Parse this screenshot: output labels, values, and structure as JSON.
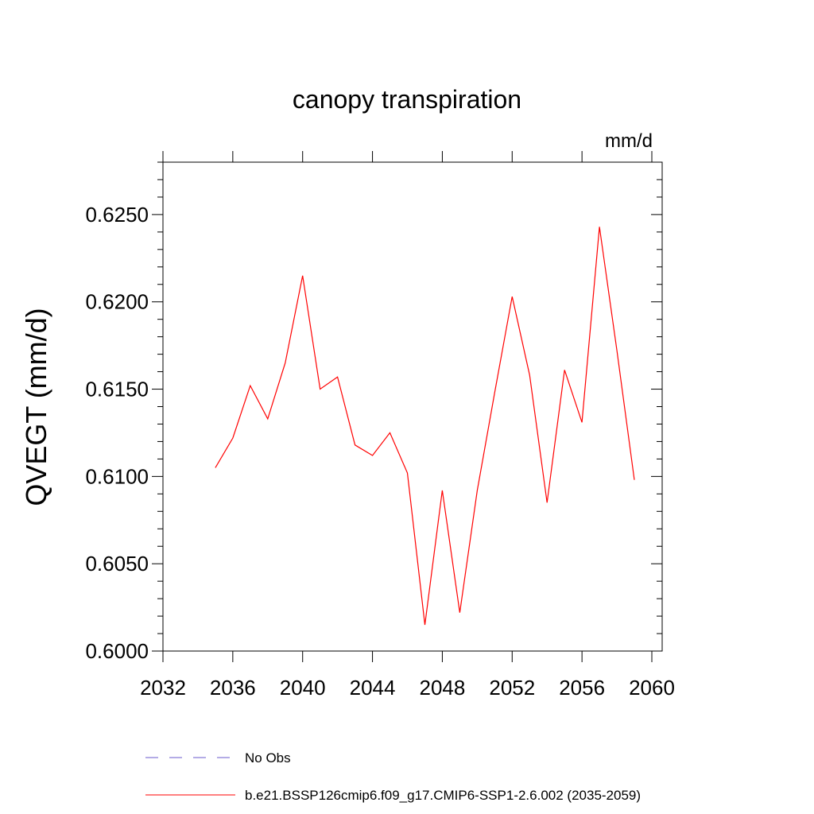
{
  "chart_data": {
    "type": "line",
    "title": "canopy transpiration",
    "units_label": "mm/d",
    "ylabel": "QVEGT  (mm/d)",
    "xlabel": "",
    "xlim": [
      2032,
      2060
    ],
    "ylim": [
      0.6,
      0.628
    ],
    "x_ticks": [
      2032,
      2036,
      2040,
      2044,
      2048,
      2052,
      2056,
      2060
    ],
    "x_tick_labels": [
      "2032",
      "2036",
      "2040",
      "2044",
      "2048",
      "2052",
      "2056",
      "2060"
    ],
    "y_ticks": [
      0.6,
      0.605,
      0.61,
      0.615,
      0.62,
      0.625
    ],
    "y_tick_labels": [
      "0.6000",
      "0.6050",
      "0.6100",
      "0.6150",
      "0.6200",
      "0.6250"
    ],
    "grid": false,
    "legend_position": "bottom",
    "series": [
      {
        "name": "b.e21.BSSP126cmip6.f09_g17.CMIP6-SSP1-2.6.002 (2035-2059)",
        "color": "#ff0000",
        "style": "solid",
        "x": [
          2035,
          2036,
          2037,
          2038,
          2039,
          2040,
          2041,
          2042,
          2043,
          2044,
          2045,
          2046,
          2047,
          2048,
          2049,
          2050,
          2051,
          2052,
          2053,
          2054,
          2055,
          2056,
          2057,
          2058,
          2059
        ],
        "y": [
          0.6105,
          0.6122,
          0.6152,
          0.6133,
          0.6165,
          0.6215,
          0.615,
          0.6157,
          0.6118,
          0.6112,
          0.6125,
          0.6102,
          0.6015,
          0.6092,
          0.6022,
          0.6092,
          0.6148,
          0.6203,
          0.6158,
          0.6085,
          0.6161,
          0.6131,
          0.6243,
          0.6172,
          0.6098
        ]
      }
    ],
    "legend": [
      {
        "label": "No Obs",
        "color": "#6a5acd",
        "style": "dashed"
      },
      {
        "label": "b.e21.BSSP126cmip6.f09_g17.CMIP6-SSP1-2.6.002 (2035-2059)",
        "color": "#ff0000",
        "style": "solid"
      }
    ]
  }
}
